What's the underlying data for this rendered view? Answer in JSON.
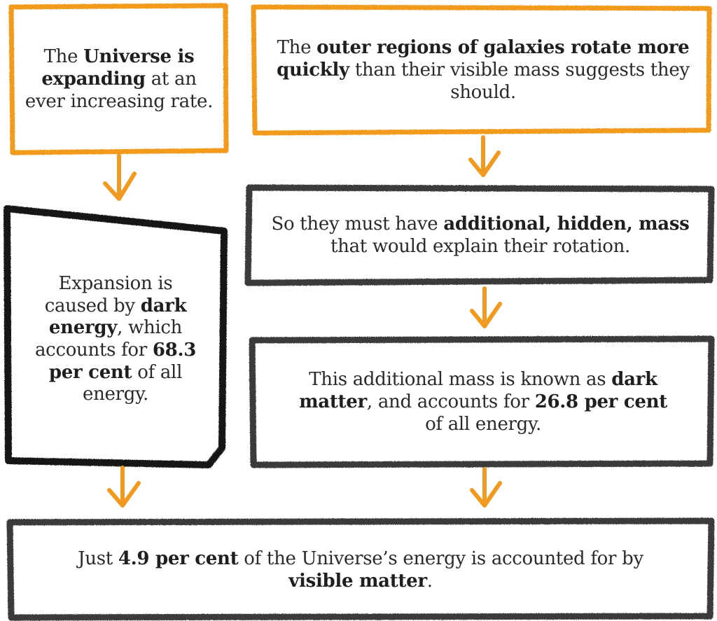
{
  "colors": {
    "orange": "#f29a1f",
    "dark": "#3a3a3a",
    "black": "#141414",
    "text": "#2a2a2a"
  },
  "boxes": {
    "universe": {
      "pre": "The ",
      "bold1": "Universe is expanding",
      "post": " at an ever increasing rate."
    },
    "galaxies": {
      "pre": "The ",
      "bold1": "outer regions of galaxies rotate more quickly",
      "post": " than their visible mass suggests they should."
    },
    "hidden_mass": {
      "pre": "So they must have ",
      "bold1": "additional, hidden, mass",
      "post": " that would explain their rotation."
    },
    "dark_energy": {
      "pre": "Expansion is caused by ",
      "bold1": "dark energy",
      "mid": ", which accounts for ",
      "bold2": "68.3 per cent",
      "post": " of all energy."
    },
    "dark_matter": {
      "pre": "This additional mass is known as ",
      "bold1": "dark matter",
      "mid": ", and accounts for ",
      "bold2": "26.8 per cent",
      "post": " of all energy."
    },
    "visible_matter": {
      "pre": "Just ",
      "bold1": "4.9 per cent",
      "mid": " of the Universe’s energy is accounted for by ",
      "bold2": "visible matter",
      "post": "."
    }
  },
  "arrows": [
    "down-arrow-icon",
    "down-arrow-icon",
    "down-arrow-icon",
    "down-arrow-icon",
    "down-arrow-icon"
  ]
}
